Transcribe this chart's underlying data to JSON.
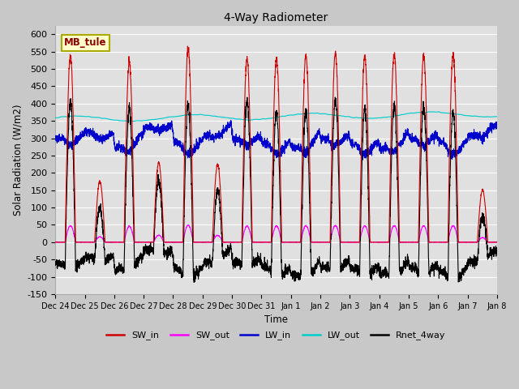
{
  "title": "4-Way Radiometer",
  "xlabel": "Time",
  "ylabel": "Solar Radiation (W/m2)",
  "ylim": [
    -150,
    625
  ],
  "yticks": [
    -150,
    -100,
    -50,
    0,
    50,
    100,
    150,
    200,
    250,
    300,
    350,
    400,
    450,
    500,
    550,
    600
  ],
  "station_label": "MB_tule",
  "colors": {
    "SW_in": "#cc0000",
    "SW_out": "#ff00ff",
    "LW_in": "#0000cc",
    "LW_out": "#00cccc",
    "Rnet_4way": "#000000"
  },
  "legend_entries": [
    "SW_in",
    "SW_out",
    "LW_in",
    "LW_out",
    "Rnet_4way"
  ],
  "fig_bg_color": "#c8c8c8",
  "plot_bg_color": "#e0e0e0",
  "n_days": 15,
  "hours_per_day": 24,
  "dt_hours": 0.1,
  "SW_in_peaks": [
    540,
    175,
    520,
    230,
    560,
    225,
    530,
    530,
    540,
    545,
    535,
    545,
    540,
    540,
    150
  ],
  "tick_labels": [
    "Dec 24",
    "Dec 25",
    "Dec 26",
    "Dec 27",
    "Dec 28",
    "Dec 29",
    "Dec 30",
    "Dec 31",
    "Jan 1",
    "Jan 2",
    "Jan 3",
    "Jan 4",
    "Jan 5",
    "Jan 6",
    "Jan 7",
    "Jan 8"
  ]
}
